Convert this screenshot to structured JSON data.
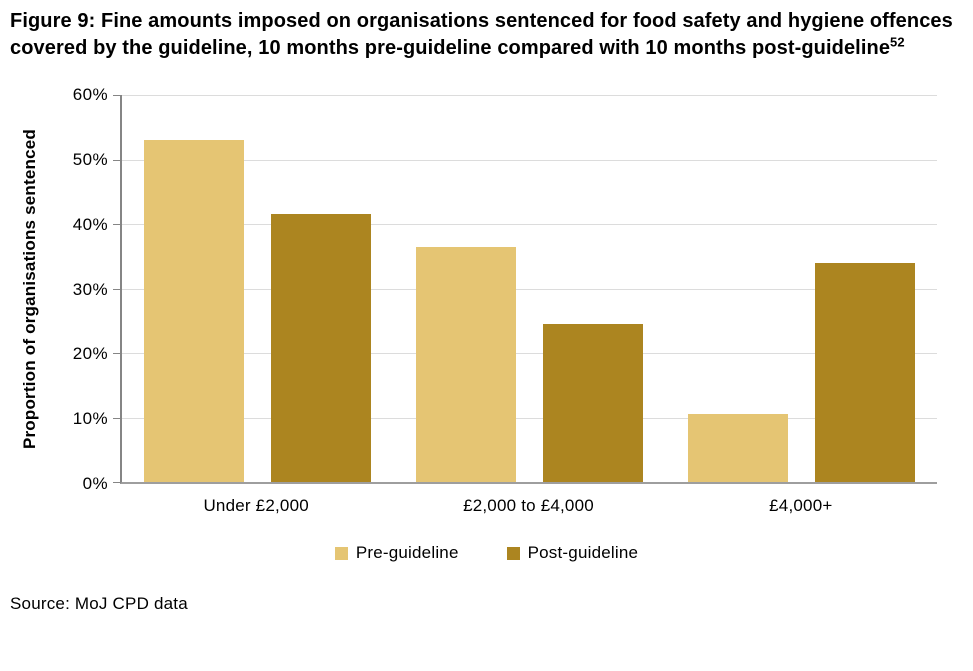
{
  "figure": {
    "title": "Figure 9: Fine amounts imposed on organisations sentenced for food safety and hygiene offences covered by the guideline, 10 months pre-guideline compared with 10 months post-guideline",
    "title_superscript": "52",
    "source": "Source: MoJ CPD data"
  },
  "chart_data": {
    "type": "bar",
    "title": "Fine amounts imposed on organisations sentenced for food safety and hygiene offences, 10 months pre-guideline vs 10 months post-guideline",
    "categories": [
      "Under £2,000",
      "£2,000 to £4,000",
      "£4,000+"
    ],
    "series": [
      {
        "name": "Pre-guideline",
        "color": "#E5C573",
        "values": [
          53,
          36.5,
          10.5
        ]
      },
      {
        "name": "Post-guideline",
        "color": "#AC8520",
        "values": [
          41.5,
          24.5,
          34
        ]
      }
    ],
    "xlabel": "",
    "ylabel": "Proportion of organisations sentenced",
    "ylim": [
      0,
      60
    ],
    "yticks": [
      "0%",
      "10%",
      "20%",
      "30%",
      "40%",
      "50%",
      "60%"
    ],
    "grid": true,
    "legend_position": "bottom"
  }
}
